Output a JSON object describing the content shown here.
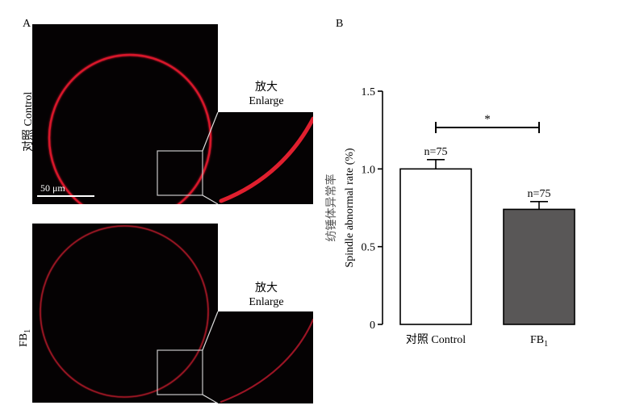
{
  "panel_a": {
    "letter": "A",
    "row1_label": "对照 Control",
    "row2_label_main": "FB",
    "row2_label_sub": "1",
    "enlarge_cn": "放大",
    "enlarge_en": "Enlarge",
    "scale_bar": "50 μm"
  },
  "panel_b": {
    "letter": "B",
    "significance": "*"
  },
  "chart_data": {
    "type": "bar",
    "categories": [
      "对照 Control",
      "FB1"
    ],
    "category_display": [
      {
        "main": "对照 Control",
        "sub": ""
      },
      {
        "main": "FB",
        "sub": "1"
      }
    ],
    "values": [
      1.0,
      0.74
    ],
    "errors": [
      0.06,
      0.05
    ],
    "bar_labels": [
      "n=75",
      "n=75"
    ],
    "bar_colors": [
      "#ffffff",
      "#595757"
    ],
    "ylabel_cn": "纺锤体异常率",
    "ylabel_en": "Spindle abnormal rate (%)",
    "ylim": [
      0,
      1.5
    ],
    "yticks": [
      0,
      0.5,
      1.0,
      1.5
    ],
    "ytick_labels": [
      "0",
      "0.5",
      "1.0",
      "1.5"
    ]
  }
}
